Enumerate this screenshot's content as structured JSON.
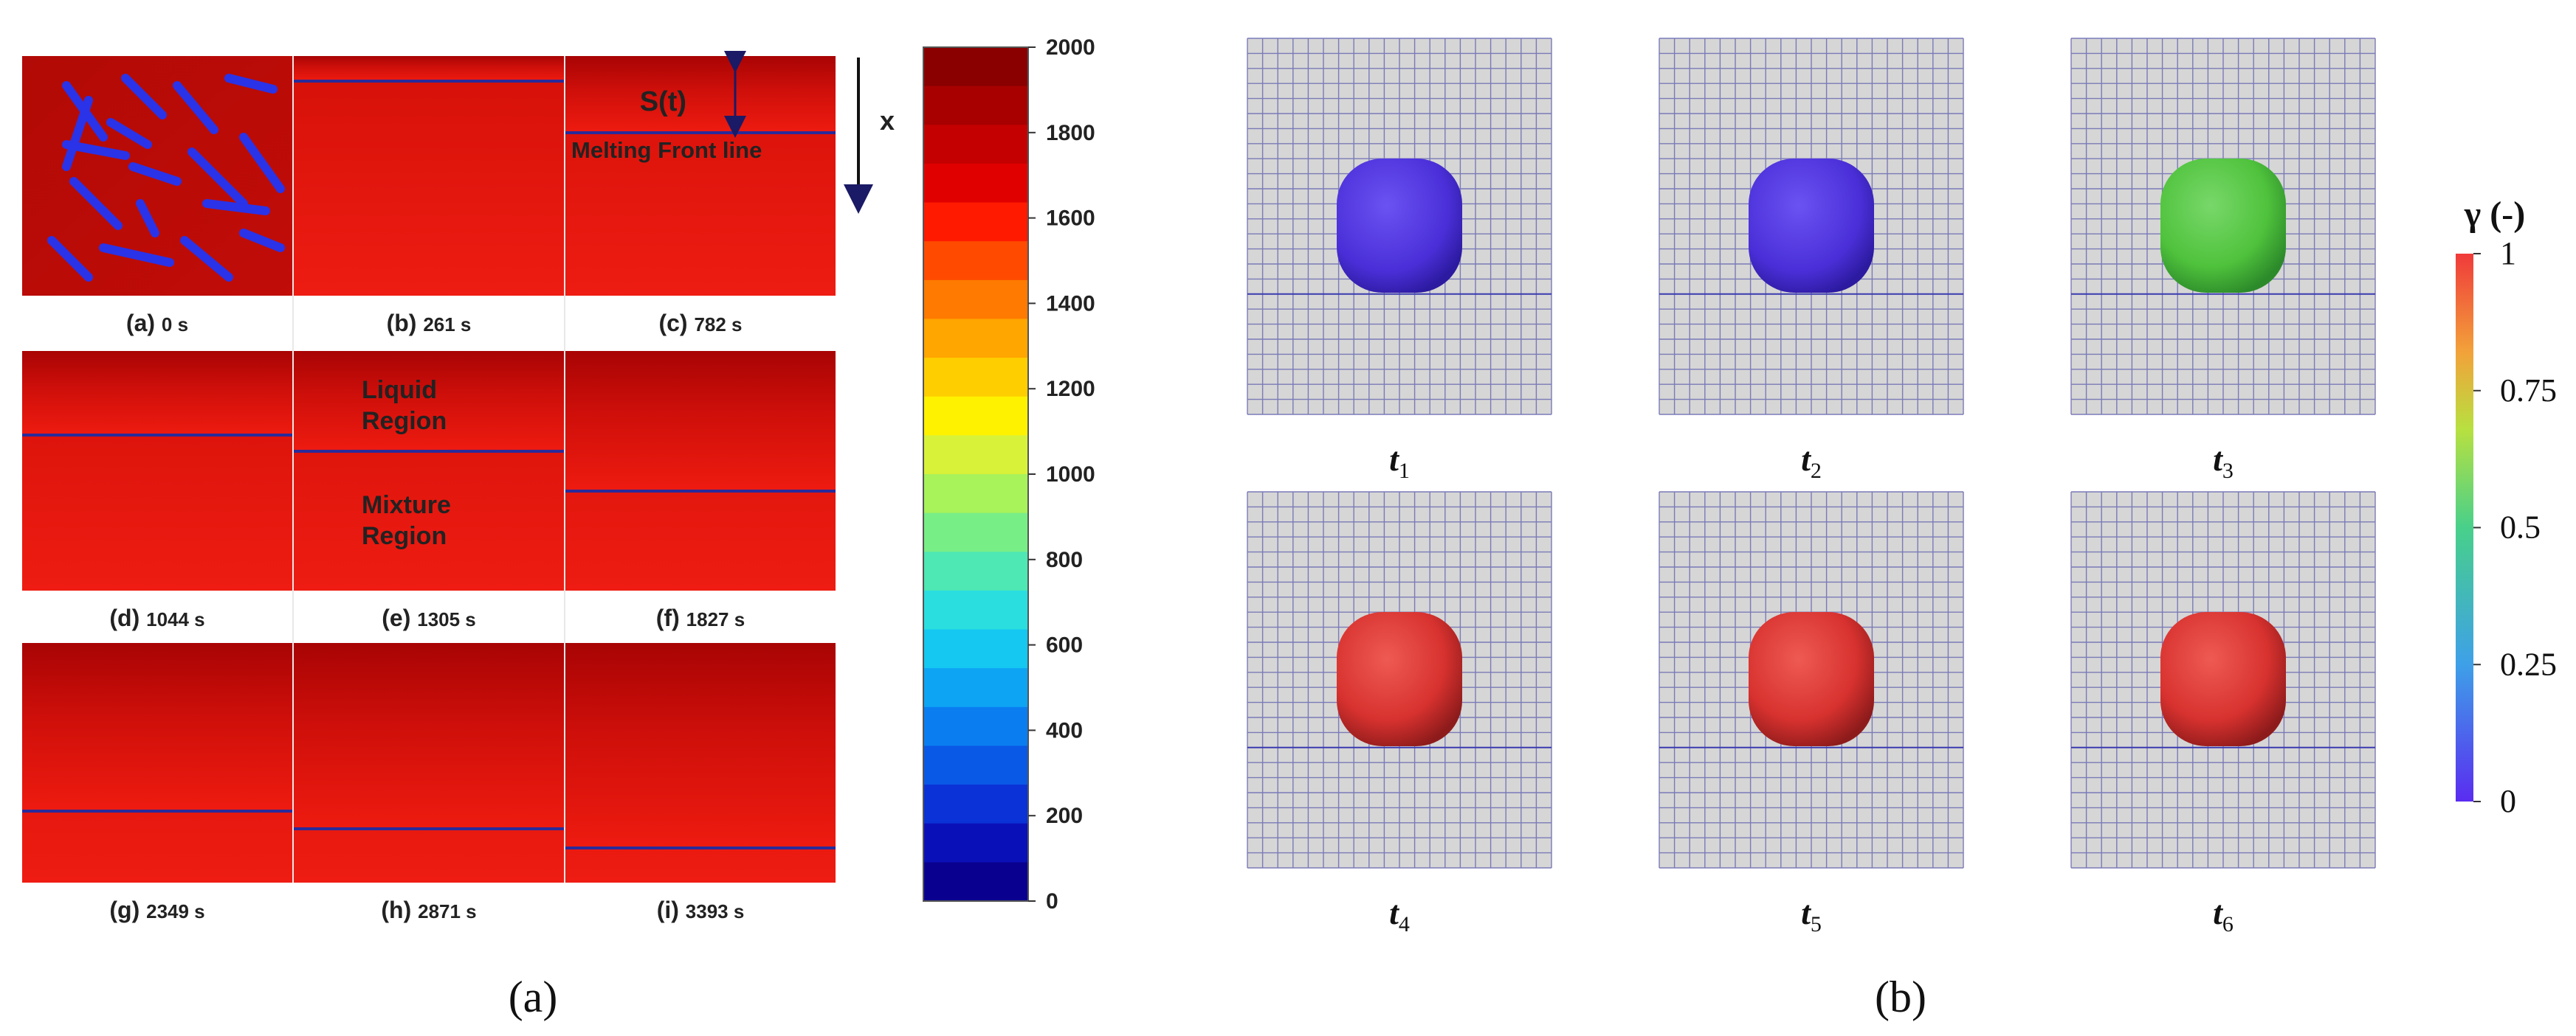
{
  "panel_a": {
    "caption": "(a)",
    "subplots": [
      {
        "letter": "(a)",
        "time": "0 s"
      },
      {
        "letter": "(b)",
        "time": "261 s"
      },
      {
        "letter": "(c)",
        "time": "782 s"
      },
      {
        "letter": "(d)",
        "time": "1044 s"
      },
      {
        "letter": "(e)",
        "time": "1305 s"
      },
      {
        "letter": "(f)",
        "time": "1827 s"
      },
      {
        "letter": "(g)",
        "time": "2349 s"
      },
      {
        "letter": "(h)",
        "time": "2871 s"
      },
      {
        "letter": "(i)",
        "time": "3393 s"
      }
    ],
    "annotations": {
      "st": "S(t)",
      "x": "x",
      "melting_front": "Melting Front line",
      "liquid1": "Liquid",
      "liquid2": "Region",
      "mixture1": "Mixture",
      "mixture2": "Region"
    },
    "colorbar": {
      "ticks": [
        "2000",
        "1800",
        "1600",
        "1400",
        "1200",
        "1000",
        "800",
        "600",
        "400",
        "200",
        "0"
      ]
    }
  },
  "panel_b": {
    "caption": "(b)",
    "subplots": [
      {
        "label": "t",
        "sub": "1",
        "state": "blue"
      },
      {
        "label": "t",
        "sub": "2",
        "state": "blue"
      },
      {
        "label": "t",
        "sub": "3",
        "state": "green"
      },
      {
        "label": "t",
        "sub": "4",
        "state": "red"
      },
      {
        "label": "t",
        "sub": "5",
        "state": "red"
      },
      {
        "label": "t",
        "sub": "6",
        "state": "red"
      }
    ],
    "colorbar": {
      "title": "γ (-)",
      "ticks": [
        "1",
        "0.75",
        "0.5",
        "0.25",
        "0"
      ]
    },
    "colors": {
      "blue": "#4a2fd8",
      "green": "#4fc23c",
      "red": "#d8322f",
      "grid_bg": "#d6d6d6",
      "grid_line": "#3a3ab0"
    }
  }
}
